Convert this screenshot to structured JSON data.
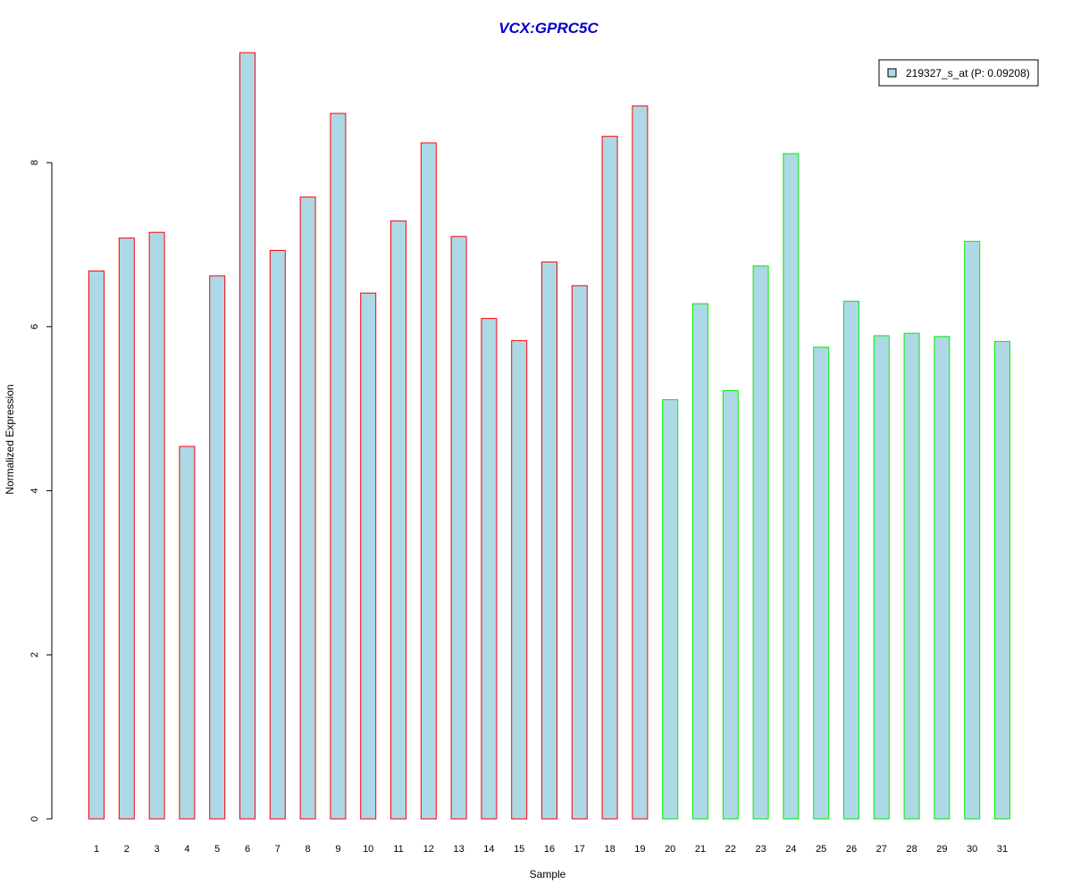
{
  "chart_data": {
    "type": "bar",
    "title": "VCX:GPRC5C",
    "xlabel": "Sample",
    "ylabel": "Normalized Expression",
    "categories": [
      "1",
      "2",
      "3",
      "4",
      "5",
      "6",
      "7",
      "8",
      "9",
      "10",
      "11",
      "12",
      "13",
      "14",
      "15",
      "16",
      "17",
      "18",
      "19",
      "20",
      "21",
      "22",
      "23",
      "24",
      "25",
      "26",
      "27",
      "28",
      "29",
      "30",
      "31"
    ],
    "series": [
      {
        "name": "219327_s_at (P: 0.09208)",
        "values": [
          6.68,
          7.08,
          7.15,
          4.54,
          6.62,
          9.34,
          6.93,
          7.58,
          8.6,
          6.41,
          7.29,
          8.24,
          7.1,
          6.1,
          5.83,
          6.79,
          6.5,
          8.32,
          8.69,
          5.11,
          6.28,
          5.22,
          6.74,
          8.11,
          5.75,
          6.31,
          5.89,
          5.92,
          5.88,
          7.04,
          5.82
        ]
      }
    ],
    "group_of_sample": [
      0,
      0,
      0,
      0,
      0,
      0,
      0,
      0,
      0,
      0,
      0,
      0,
      0,
      0,
      0,
      0,
      0,
      0,
      0,
      1,
      1,
      1,
      1,
      1,
      1,
      1,
      1,
      1,
      1,
      1,
      1
    ],
    "group_border_colors": [
      "#ff0000",
      "#00ee00"
    ],
    "bar_fill": "#add8e6",
    "title_color": "#0000cd",
    "ylim": [
      0,
      9.34
    ],
    "yticks": [
      0,
      2,
      4,
      6,
      8
    ],
    "grid": false,
    "legend_position": "top-right"
  }
}
